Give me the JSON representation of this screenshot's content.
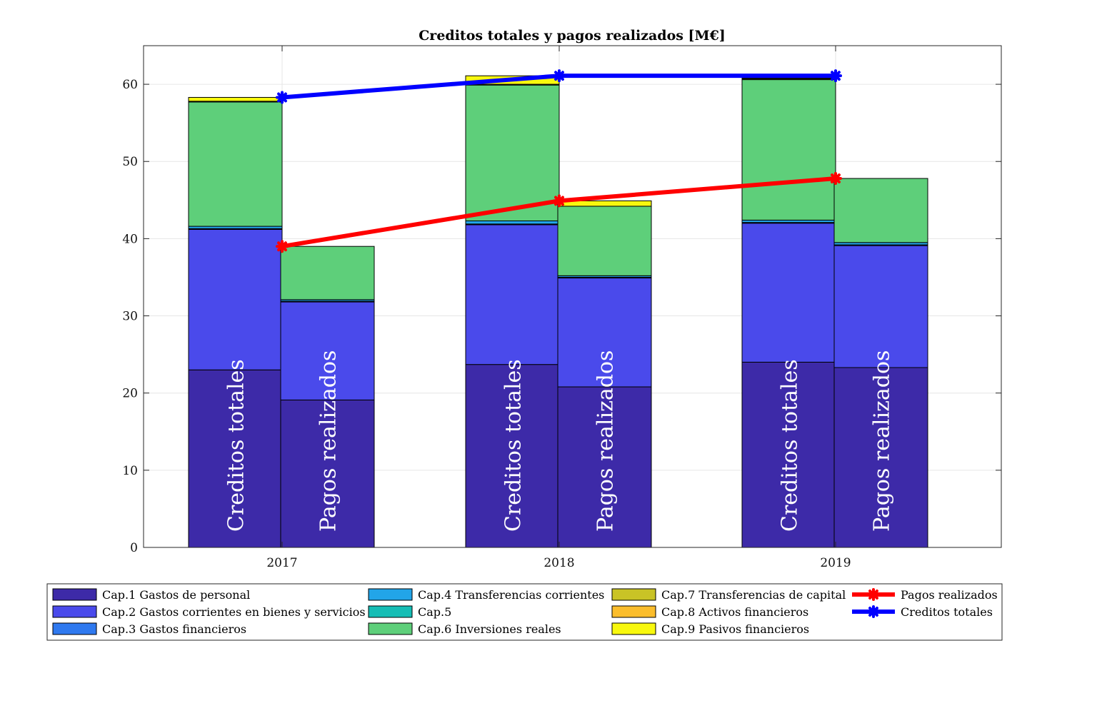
{
  "chart_data": {
    "type": "bar",
    "title": "Creditos totales y pagos realizados [M€]",
    "xlabel": "",
    "ylabel": "",
    "ylim": [
      0,
      65
    ],
    "yticks": [
      0,
      10,
      20,
      30,
      40,
      50,
      60
    ],
    "grid": true,
    "categories": [
      "2017",
      "2018",
      "2019"
    ],
    "bar_groups": [
      {
        "label": "Creditos totales"
      },
      {
        "label": "Pagos realizados"
      }
    ],
    "stack_series": [
      {
        "name": "Cap.1 Gastos de personal",
        "color": "#3d2aa8",
        "creditos": [
          23.0,
          23.7,
          24.0
        ],
        "pagos": [
          19.1,
          20.8,
          23.3
        ]
      },
      {
        "name": "Cap.2 Gastos corrientes en bienes y servicios",
        "color": "#4a4aeb",
        "creditos": [
          18.2,
          18.1,
          18.0
        ],
        "pagos": [
          12.7,
          14.1,
          15.8
        ]
      },
      {
        "name": "Cap.3 Gastos financieros",
        "color": "#2f79ef",
        "creditos": [
          0.1,
          0.1,
          0.1
        ],
        "pagos": [
          0.1,
          0.1,
          0.1
        ]
      },
      {
        "name": "Cap.4 Transferencias corrientes",
        "color": "#22a5e8",
        "creditos": [
          0.3,
          0.4,
          0.3
        ],
        "pagos": [
          0.2,
          0.2,
          0.3
        ]
      },
      {
        "name": "Cap.5",
        "color": "#15bdb5",
        "creditos": [
          0.0,
          0.0,
          0.0
        ],
        "pagos": [
          0.0,
          0.0,
          0.0
        ]
      },
      {
        "name": "Cap.6 Inversiones reales",
        "color": "#5ecf7a",
        "creditos": [
          16.1,
          17.6,
          18.2
        ],
        "pagos": [
          6.9,
          9.0,
          8.3
        ]
      },
      {
        "name": "Cap.7 Transferencias de capital",
        "color": "#c9c326",
        "creditos": [
          0.1,
          0.1,
          0.1
        ],
        "pagos": [
          0.0,
          0.0,
          0.0
        ]
      },
      {
        "name": "Cap.8 Activos financieros",
        "color": "#fbbd2c",
        "creditos": [
          0.0,
          0.0,
          0.0
        ],
        "pagos": [
          0.0,
          0.0,
          0.0
        ]
      },
      {
        "name": "Cap.9 Pasivos financieros",
        "color": "#f8f80e",
        "creditos": [
          0.5,
          1.1,
          0.1
        ],
        "pagos": [
          0.0,
          0.7,
          0.0
        ]
      }
    ],
    "line_series": [
      {
        "name": "Pagos realizados",
        "color": "#ff0000",
        "values": [
          39.0,
          44.9,
          47.8
        ]
      },
      {
        "name": "Creditos totales",
        "color": "#0000ff",
        "values": [
          58.3,
          61.1,
          61.1
        ]
      }
    ],
    "legend_position": "bottom-outside"
  }
}
